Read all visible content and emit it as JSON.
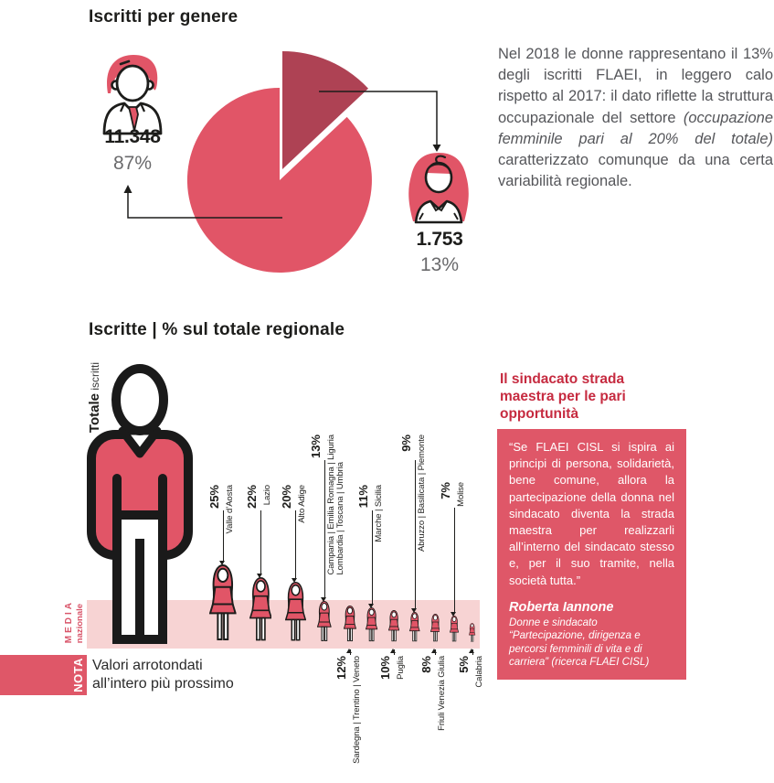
{
  "page": {
    "title1": "Iscritti per genere",
    "title2": "Iscritte | % sul totale regionale"
  },
  "pie_labels": {
    "male_count": "11.348",
    "male_pct": "87%",
    "female_count": "1.753",
    "female_pct": "13%"
  },
  "intro": {
    "pre": "Nel 2018 le donne rappresentano il 13% degli iscritti FLAEI, in leggero calo rispetto al 2017: il dato riflette la struttura occupazionale del settore ",
    "italic": "(occupazione femminile pari al 20% del totale)",
    "post": " caratterizzato comunque da una certa variabilità regionale."
  },
  "pictogram_labels": {
    "total_bold": "Totale",
    "total_light": " iscritti",
    "media_line1": "MEDIA",
    "media_line2": "nazionale"
  },
  "nota": {
    "tag": "NOTA",
    "line1": "Valori arrotondati",
    "line2": "all’intero più prossimo"
  },
  "sidebar": {
    "heading": "Il sindacato strada maestra per le pari opportunità",
    "quote": "“Se FLAEI CISL si ispira ai principi di persona, solidarietà, bene comune, allora la partecipazione della donna nel sindacato diventa la strada maestra per realizzarli all’interno del sindacato stesso e, per il suo tramite, nella società tutta.”",
    "author": "Roberta Iannone",
    "source": "Donne e sindacato “Partecipazione, dirigenza e percorsi femminili di vita e di carriera” (ricerca FLAEI CISL)"
  },
  "colors": {
    "red_main": "#e15567",
    "red_dark": "#ae4254",
    "pink_band": "#f7d3d3",
    "red_heading": "#c62b40",
    "red_box": "#df5768",
    "text_dark": "#1d1d1b",
    "text_gray": "#55565a",
    "pct_gray": "#6a6a6c"
  },
  "chart_data": [
    {
      "type": "pie",
      "title": "Iscritti per genere",
      "slices": [
        {
          "label": "uomini",
          "count": "11.348",
          "pct": 87
        },
        {
          "label": "donne",
          "count": "1.753",
          "pct": 13
        }
      ],
      "exploded_slice": "donne"
    },
    {
      "type": "pictogram",
      "title": "Iscritte | % sul totale regionale",
      "reference_figure": "Totale iscritti",
      "band_label": "MEDIA nazionale",
      "note": "Valori arrotondati all’intero più prossimo",
      "items": [
        {
          "pct": 25,
          "regions": [
            "Valle d’Aosta"
          ],
          "label_side": "top"
        },
        {
          "pct": 22,
          "regions": [
            "Lazio"
          ],
          "label_side": "top"
        },
        {
          "pct": 20,
          "regions": [
            "Alto Adige"
          ],
          "label_side": "top"
        },
        {
          "pct": 13,
          "regions": [
            "Campania | Emilia Romagna | Liguria",
            "Lombardia | Toscana | Umbria"
          ],
          "label_side": "top"
        },
        {
          "pct": 12,
          "regions": [
            "Sardegna | Trentino | Veneto"
          ],
          "label_side": "bottom"
        },
        {
          "pct": 11,
          "regions": [
            "Marche | Sicilia"
          ],
          "label_side": "top"
        },
        {
          "pct": 10,
          "regions": [
            "Puglia"
          ],
          "label_side": "bottom"
        },
        {
          "pct": 9,
          "regions": [
            "Abruzzo | Basilicata | Piemonte"
          ],
          "label_side": "top"
        },
        {
          "pct": 8,
          "regions": [
            "Friuli Venezia Giulia"
          ],
          "label_side": "bottom"
        },
        {
          "pct": 7,
          "regions": [
            "Molise"
          ],
          "label_side": "top"
        },
        {
          "pct": 5,
          "regions": [
            "Calabria"
          ],
          "label_side": "bottom"
        }
      ]
    }
  ]
}
